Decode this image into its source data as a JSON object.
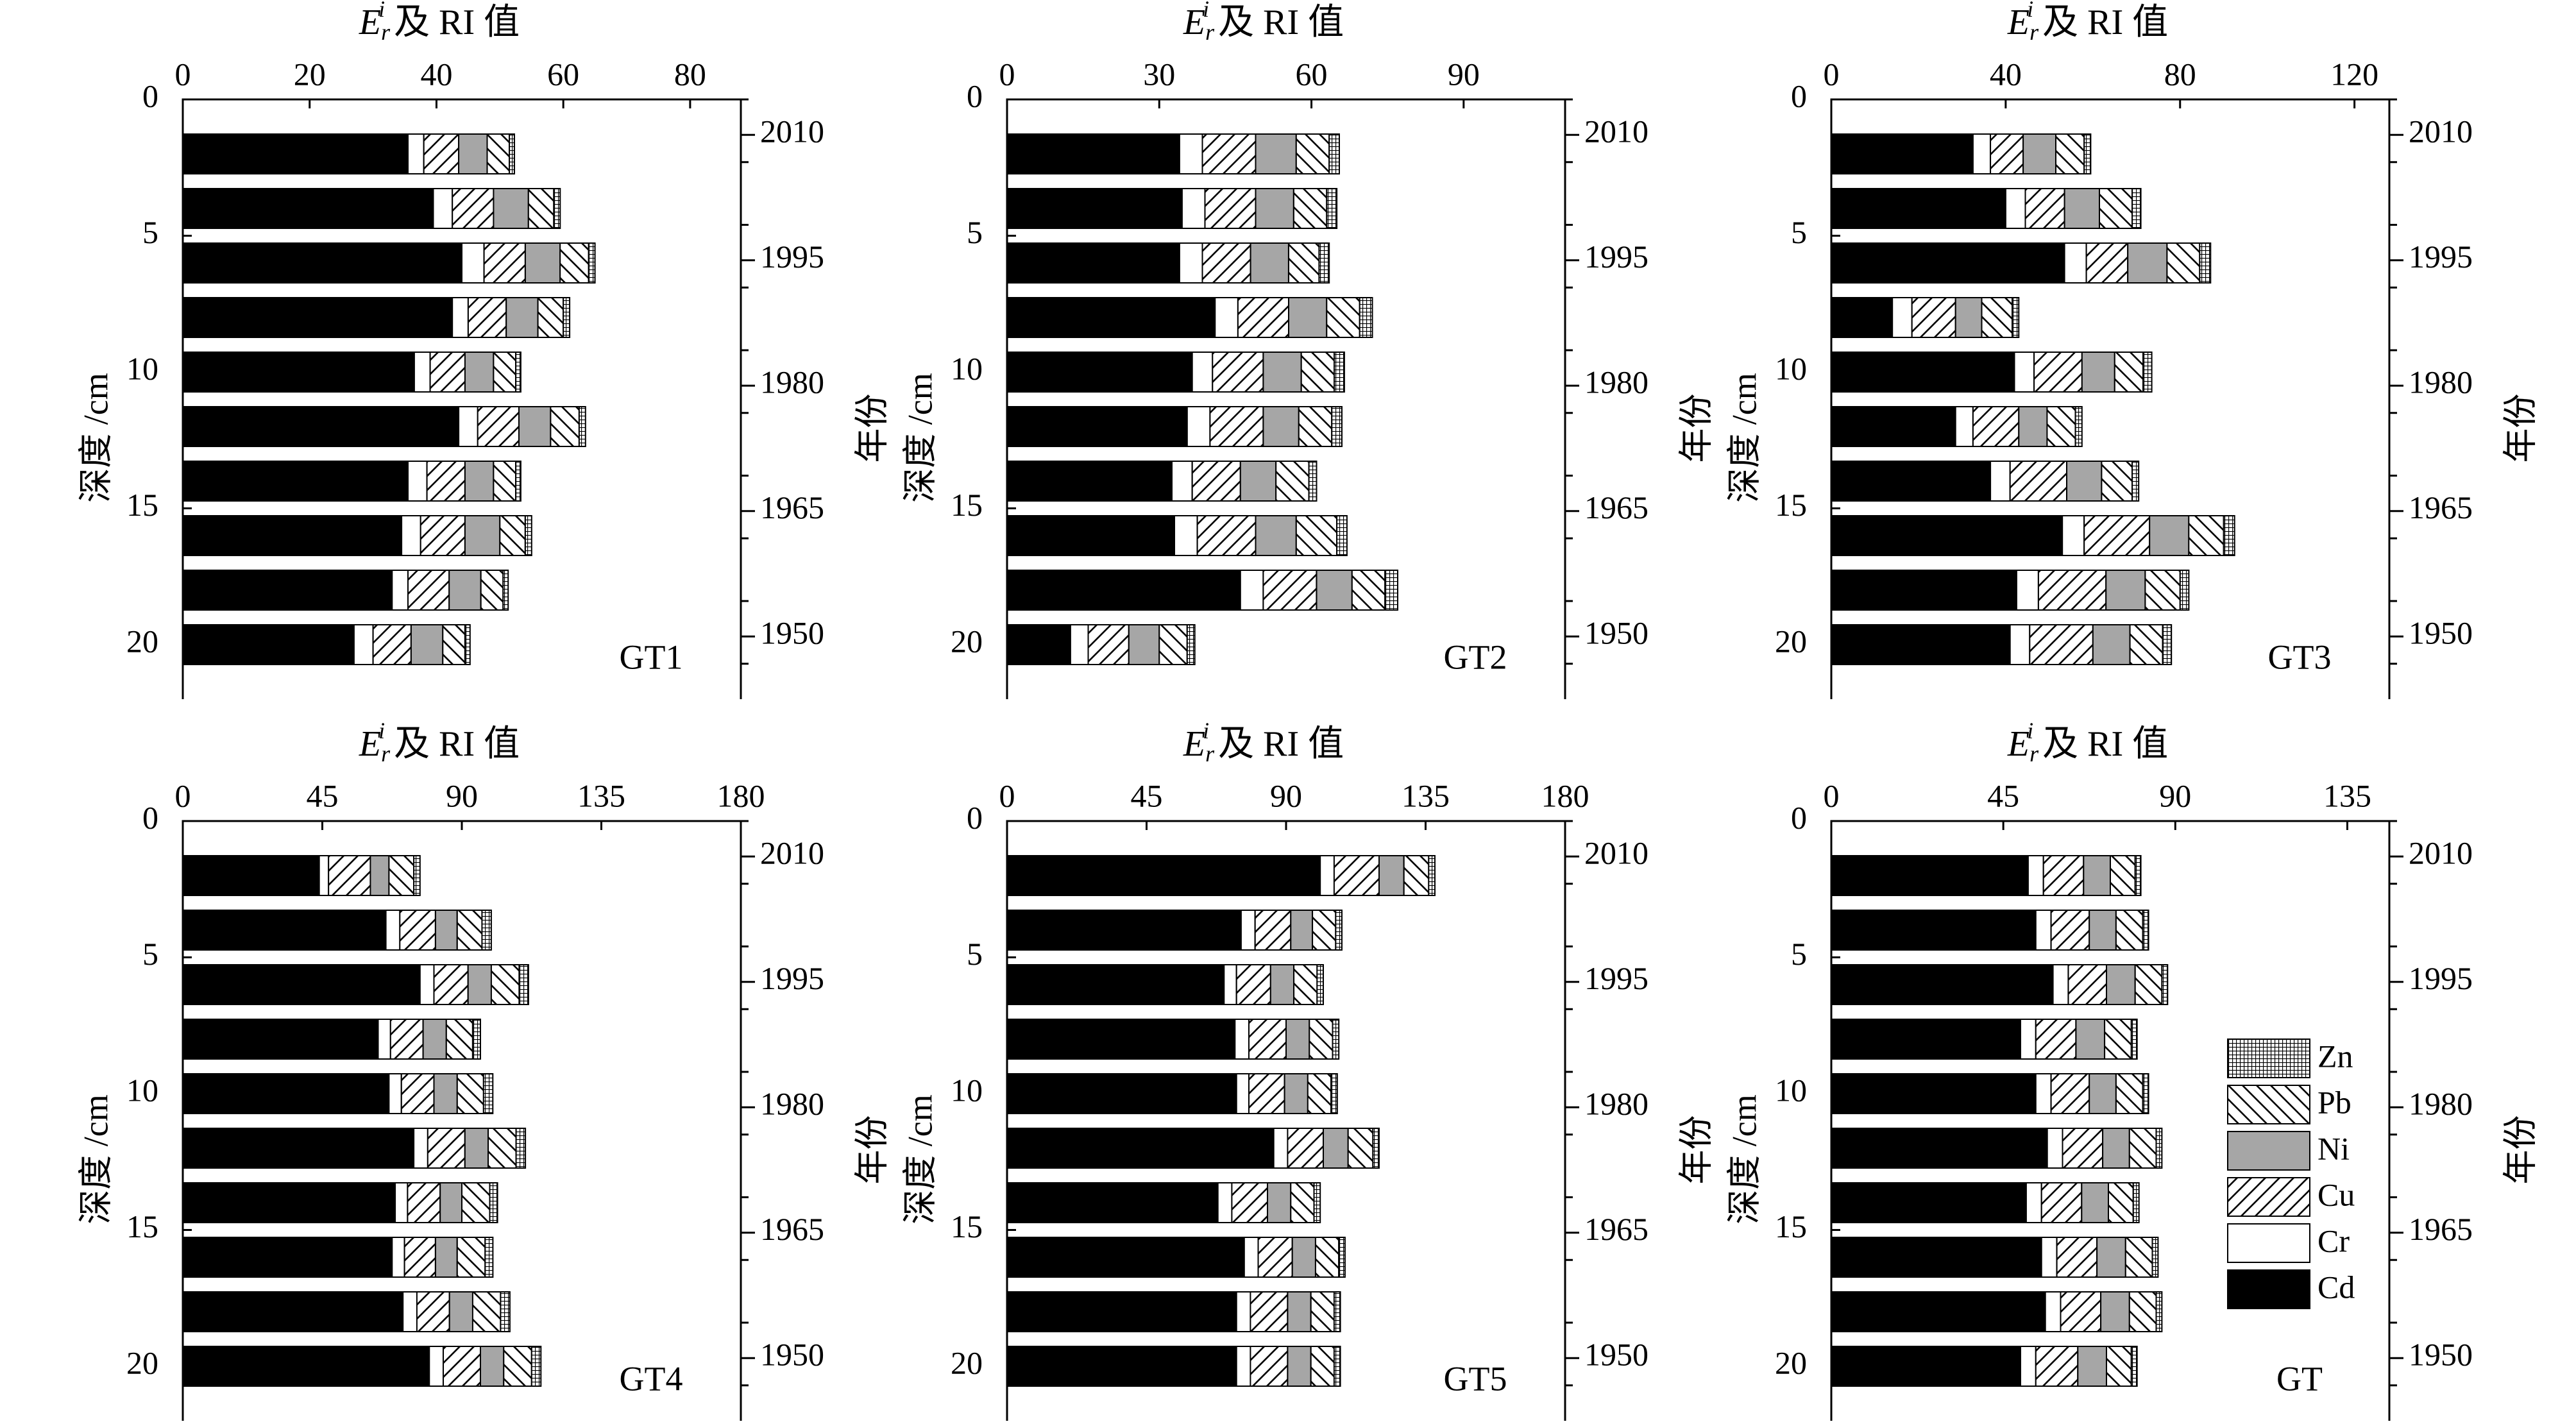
{
  "figure": {
    "panel_count": 6,
    "components": [
      "Cd",
      "Cr",
      "Cu",
      "Ni",
      "Pb",
      "Zn"
    ],
    "component_colors": {
      "Cd": "#000000",
      "Cr": "#ffffff",
      "Cu": "#ffffff",
      "Ni": "#a6a6a6",
      "Pb": "#ffffff",
      "Zn": "#ffffff"
    },
    "component_patterns": {
      "Cd": "solid",
      "Cr": "blank",
      "Cu": "forward-hatch",
      "Ni": "solid",
      "Pb": "back-hatch",
      "Zn": "grid"
    },
    "legend_order": [
      "Zn",
      "Pb",
      "Ni",
      "Cu",
      "Cr",
      "Cd"
    ]
  },
  "chart_data": [
    {
      "type": "bar",
      "orientation": "horizontal",
      "stacked": true,
      "panel_label": "GT1",
      "title": "",
      "xlabel": "E_r^i 及 RI 值",
      "xlabel_main": "E",
      "xlabel_sub": "r",
      "xlabel_sup": "i",
      "xlabel_rest": " 及 RI 值",
      "ylabel": "深度 /cm",
      "y2label": "年份",
      "xlim": [
        0,
        88
      ],
      "xticks": [
        0,
        20,
        40,
        60,
        80
      ],
      "ylim": [
        0,
        22
      ],
      "yticks": [
        0,
        5,
        10,
        15,
        20
      ],
      "y2ticks": [
        {
          "label": "2010",
          "depth": 1.3
        },
        {
          "label": "1995",
          "depth": 5.9
        },
        {
          "label": "1980",
          "depth": 10.5
        },
        {
          "label": "1965",
          "depth": 15.1
        },
        {
          "label": "1950",
          "depth": 19.7
        }
      ],
      "depths": [
        2,
        4,
        6,
        8,
        10,
        12,
        14,
        16,
        18,
        20
      ],
      "series": [
        {
          "name": "Cd",
          "values": [
            35.5,
            39.5,
            44.0,
            42.5,
            36.5,
            43.5,
            35.5,
            34.5,
            33.0,
            27.0
          ]
        },
        {
          "name": "Cr",
          "values": [
            2.5,
            3.0,
            3.5,
            2.5,
            2.5,
            3.0,
            3.0,
            3.0,
            2.5,
            3.0
          ]
        },
        {
          "name": "Cu",
          "values": [
            5.5,
            6.5,
            6.5,
            6.0,
            5.5,
            6.5,
            6.0,
            7.0,
            6.5,
            6.0
          ]
        },
        {
          "name": "Ni",
          "values": [
            4.5,
            5.5,
            5.5,
            5.0,
            4.5,
            5.0,
            4.5,
            5.5,
            5.0,
            5.0
          ]
        },
        {
          "name": "Pb",
          "values": [
            3.5,
            4.0,
            4.5,
            4.0,
            3.5,
            4.5,
            3.5,
            4.0,
            3.5,
            3.5
          ]
        },
        {
          "name": "Zn",
          "values": [
            0.8,
            1.0,
            1.0,
            1.0,
            0.8,
            1.0,
            0.8,
            1.0,
            0.8,
            0.8
          ]
        }
      ]
    },
    {
      "type": "bar",
      "orientation": "horizontal",
      "stacked": true,
      "panel_label": "GT2",
      "title": "",
      "xlabel": "E_r^i 及 RI 值",
      "xlabel_main": "E",
      "xlabel_sub": "r",
      "xlabel_sup": "i",
      "xlabel_rest": " 及 RI 值",
      "ylabel": "深度 /cm",
      "y2label": "年份",
      "xlim": [
        0,
        110
      ],
      "xticks": [
        0,
        30,
        60,
        90
      ],
      "ylim": [
        0,
        22
      ],
      "yticks": [
        0,
        5,
        10,
        15,
        20
      ],
      "y2ticks": [
        {
          "label": "2010",
          "depth": 1.3
        },
        {
          "label": "1995",
          "depth": 5.9
        },
        {
          "label": "1980",
          "depth": 10.5
        },
        {
          "label": "1965",
          "depth": 15.1
        },
        {
          "label": "1950",
          "depth": 19.7
        }
      ],
      "depths": [
        2,
        4,
        6,
        8,
        10,
        12,
        14,
        16,
        18,
        20
      ],
      "series": [
        {
          "name": "Cd",
          "values": [
            34.0,
            34.5,
            34.0,
            41.0,
            36.5,
            35.5,
            32.5,
            33.0,
            46.0,
            12.5
          ]
        },
        {
          "name": "Cr",
          "values": [
            4.5,
            4.5,
            4.5,
            4.5,
            4.0,
            4.5,
            4.0,
            4.5,
            4.5,
            3.5
          ]
        },
        {
          "name": "Cu",
          "values": [
            10.5,
            10.0,
            9.5,
            10.0,
            10.0,
            10.5,
            9.5,
            11.5,
            10.5,
            8.0
          ]
        },
        {
          "name": "Ni",
          "values": [
            8.0,
            7.5,
            7.5,
            7.5,
            7.5,
            7.0,
            7.0,
            8.0,
            7.0,
            6.0
          ]
        },
        {
          "name": "Pb",
          "values": [
            6.5,
            6.5,
            6.0,
            6.5,
            6.5,
            6.5,
            6.5,
            8.0,
            6.5,
            5.5
          ]
        },
        {
          "name": "Zn",
          "values": [
            2.0,
            2.0,
            2.0,
            2.5,
            2.0,
            2.0,
            1.5,
            2.0,
            2.5,
            1.5
          ]
        }
      ]
    },
    {
      "type": "bar",
      "orientation": "horizontal",
      "stacked": true,
      "panel_label": "GT3",
      "title": "",
      "xlabel": "E_r^i 及 RI 值",
      "xlabel_main": "E",
      "xlabel_sub": "r",
      "xlabel_sup": "i",
      "xlabel_rest": " 及 RI 值",
      "ylabel": "深度 /cm",
      "y2label": "年份",
      "xlim": [
        0,
        128
      ],
      "xticks": [
        0,
        40,
        80,
        120
      ],
      "ylim": [
        0,
        22
      ],
      "yticks": [
        0,
        5,
        10,
        15,
        20
      ],
      "y2ticks": [
        {
          "label": "2010",
          "depth": 1.3
        },
        {
          "label": "1995",
          "depth": 5.9
        },
        {
          "label": "1980",
          "depth": 10.5
        },
        {
          "label": "1965",
          "depth": 15.1
        },
        {
          "label": "1950",
          "depth": 19.7
        }
      ],
      "depths": [
        2,
        4,
        6,
        8,
        10,
        12,
        14,
        16,
        18,
        20
      ],
      "series": [
        {
          "name": "Cd",
          "values": [
            32.5,
            40.0,
            53.5,
            14.0,
            42.0,
            28.5,
            36.5,
            53.0,
            42.5,
            41.0
          ]
        },
        {
          "name": "Cr",
          "values": [
            4.0,
            4.5,
            5.0,
            4.5,
            4.5,
            4.0,
            4.5,
            5.0,
            5.0,
            4.5
          ]
        },
        {
          "name": "Cu",
          "values": [
            7.5,
            9.0,
            9.5,
            10.0,
            11.0,
            10.5,
            13.0,
            15.0,
            15.5,
            14.5
          ]
        },
        {
          "name": "Ni",
          "values": [
            7.5,
            8.0,
            9.0,
            6.0,
            7.5,
            6.5,
            8.0,
            9.0,
            9.0,
            8.5
          ]
        },
        {
          "name": "Pb",
          "values": [
            6.5,
            7.5,
            7.5,
            7.0,
            6.5,
            6.5,
            7.0,
            8.0,
            8.0,
            7.5
          ]
        },
        {
          "name": "Zn",
          "values": [
            1.5,
            2.0,
            2.5,
            1.5,
            2.0,
            1.5,
            1.5,
            2.5,
            2.0,
            2.0
          ]
        }
      ]
    },
    {
      "type": "bar",
      "orientation": "horizontal",
      "stacked": true,
      "panel_label": "GT4",
      "title": "",
      "xlabel": "E_r^i 及 RI 值",
      "xlabel_main": "E",
      "xlabel_sub": "r",
      "xlabel_sup": "i",
      "xlabel_rest": " 及 RI 值",
      "ylabel": "深度 /cm",
      "y2label": "年份",
      "xlim": [
        0,
        180
      ],
      "xticks": [
        0,
        45,
        90,
        135,
        180
      ],
      "ylim": [
        0,
        22
      ],
      "yticks": [
        0,
        5,
        10,
        15,
        20
      ],
      "y2ticks": [
        {
          "label": "2010",
          "depth": 1.3
        },
        {
          "label": "1995",
          "depth": 5.9
        },
        {
          "label": "1980",
          "depth": 10.5
        },
        {
          "label": "1965",
          "depth": 15.1
        },
        {
          "label": "1950",
          "depth": 19.7
        }
      ],
      "depths": [
        2,
        4,
        6,
        8,
        10,
        12,
        14,
        16,
        18,
        20
      ],
      "series": [
        {
          "name": "Cd",
          "values": [
            44.0,
            65.5,
            76.5,
            63.0,
            66.5,
            74.5,
            68.5,
            67.5,
            71.0,
            79.5
          ]
        },
        {
          "name": "Cr",
          "values": [
            3.0,
            4.5,
            4.5,
            4.0,
            4.0,
            4.5,
            4.0,
            4.0,
            4.5,
            4.5
          ]
        },
        {
          "name": "Cu",
          "values": [
            13.5,
            11.5,
            11.0,
            10.5,
            10.5,
            12.0,
            10.5,
            10.0,
            10.5,
            12.0
          ]
        },
        {
          "name": "Ni",
          "values": [
            6.0,
            7.0,
            7.5,
            7.5,
            7.5,
            7.5,
            7.0,
            7.0,
            7.5,
            7.5
          ]
        },
        {
          "name": "Pb",
          "values": [
            8.0,
            8.0,
            9.0,
            8.5,
            8.5,
            9.0,
            9.0,
            9.0,
            9.0,
            9.0
          ]
        },
        {
          "name": "Zn",
          "values": [
            2.0,
            3.0,
            3.0,
            2.5,
            3.0,
            3.0,
            2.5,
            2.5,
            3.0,
            3.0
          ]
        }
      ]
    },
    {
      "type": "bar",
      "orientation": "horizontal",
      "stacked": true,
      "panel_label": "GT5",
      "title": "",
      "xlabel": "E_r^i 及 RI 值",
      "xlabel_main": "E",
      "xlabel_sub": "r",
      "xlabel_sup": "i",
      "xlabel_rest": " 及 RI 值",
      "ylabel": "深度 /cm",
      "y2label": "年份",
      "xlim": [
        0,
        180
      ],
      "xticks": [
        0,
        45,
        90,
        135,
        180
      ],
      "ylim": [
        0,
        22
      ],
      "yticks": [
        0,
        5,
        10,
        15,
        20
      ],
      "y2ticks": [
        {
          "label": "2010",
          "depth": 1.3
        },
        {
          "label": "1995",
          "depth": 5.9
        },
        {
          "label": "1980",
          "depth": 10.5
        },
        {
          "label": "1965",
          "depth": 15.1
        },
        {
          "label": "1950",
          "depth": 19.7
        }
      ],
      "depths": [
        2,
        4,
        6,
        8,
        10,
        12,
        14,
        16,
        18,
        20
      ],
      "series": [
        {
          "name": "Cd",
          "values": [
            101.0,
            75.5,
            70.0,
            73.5,
            74.0,
            86.0,
            68.0,
            76.5,
            74.0,
            74.0
          ]
        },
        {
          "name": "Cr",
          "values": [
            4.5,
            4.5,
            4.0,
            4.5,
            4.0,
            4.5,
            4.5,
            4.5,
            4.5,
            4.5
          ]
        },
        {
          "name": "Cu",
          "values": [
            14.5,
            11.5,
            11.0,
            12.0,
            11.5,
            11.5,
            11.5,
            11.0,
            12.0,
            12.0
          ]
        },
        {
          "name": "Ni",
          "values": [
            8.0,
            7.0,
            7.5,
            7.5,
            7.5,
            8.0,
            7.5,
            7.5,
            7.5,
            7.5
          ]
        },
        {
          "name": "Pb",
          "values": [
            8.0,
            7.5,
            7.5,
            7.5,
            7.5,
            8.0,
            7.5,
            7.5,
            7.5,
            7.5
          ]
        },
        {
          "name": "Zn",
          "values": [
            2.0,
            2.0,
            2.0,
            2.0,
            2.0,
            2.0,
            2.0,
            2.0,
            2.0,
            2.0
          ]
        }
      ]
    },
    {
      "type": "bar",
      "orientation": "horizontal",
      "stacked": true,
      "panel_label": "GT",
      "title": "",
      "xlabel": "E_r^i 及 RI 值",
      "xlabel_main": "E",
      "xlabel_sub": "r",
      "xlabel_sup": "i",
      "xlabel_rest": " 及 RI 值",
      "ylabel": "深度 /cm",
      "y2label": "年份",
      "xlim": [
        0,
        146
      ],
      "xticks": [
        0,
        45,
        90,
        135
      ],
      "ylim": [
        0,
        22
      ],
      "yticks": [
        0,
        5,
        10,
        15,
        20
      ],
      "y2ticks": [
        {
          "label": "2010",
          "depth": 1.3
        },
        {
          "label": "1995",
          "depth": 5.9
        },
        {
          "label": "1980",
          "depth": 10.5
        },
        {
          "label": "1965",
          "depth": 15.1
        },
        {
          "label": "1950",
          "depth": 19.7
        }
      ],
      "depths": [
        2,
        4,
        6,
        8,
        10,
        12,
        14,
        16,
        18,
        20
      ],
      "series": [
        {
          "name": "Cd",
          "values": [
            51.5,
            53.5,
            58.0,
            49.5,
            53.5,
            56.5,
            51.0,
            55.0,
            56.0,
            49.5
          ]
        },
        {
          "name": "Cr",
          "values": [
            4.0,
            4.0,
            4.0,
            4.0,
            4.0,
            4.0,
            4.0,
            4.0,
            4.0,
            4.0
          ]
        },
        {
          "name": "Cu",
          "values": [
            10.5,
            10.0,
            10.0,
            10.5,
            10.0,
            10.5,
            10.5,
            10.5,
            10.5,
            11.0
          ]
        },
        {
          "name": "Ni",
          "values": [
            7.0,
            7.0,
            7.5,
            7.5,
            7.0,
            7.0,
            7.0,
            7.5,
            7.5,
            7.5
          ]
        },
        {
          "name": "Pb",
          "values": [
            6.5,
            7.0,
            7.0,
            7.0,
            7.0,
            7.0,
            6.5,
            7.0,
            7.0,
            6.5
          ]
        },
        {
          "name": "Zn",
          "values": [
            1.5,
            1.5,
            1.5,
            1.5,
            1.5,
            1.5,
            1.5,
            1.5,
            1.5,
            1.5
          ]
        }
      ],
      "legend": [
        "Zn",
        "Pb",
        "Ni",
        "Cu",
        "Cr",
        "Cd"
      ]
    }
  ]
}
